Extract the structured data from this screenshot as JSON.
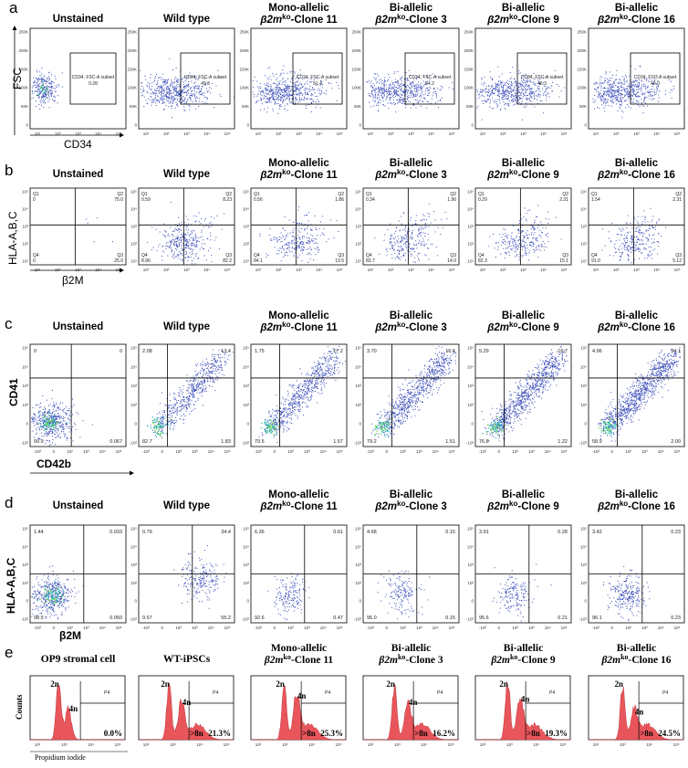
{
  "figure": {
    "colors": {
      "dot": "#3a4db8",
      "dense": "#1fb8b0",
      "core": "#6ccf3a",
      "hist": "#e8555a",
      "axis": "#000000"
    },
    "titles": [
      [
        "Unstained"
      ],
      [
        "Wild type"
      ],
      [
        "Mono-allelic",
        "β2m",
        "ko",
        "-Clone 11"
      ],
      [
        "Bi-allelic",
        "β2m",
        "ko",
        "-Clone 3"
      ],
      [
        "Bi-allelic",
        "β2m",
        "ko",
        "-Clone 9"
      ],
      [
        "Bi-allelic",
        "β2m",
        "ko",
        "-Clone 16"
      ]
    ],
    "panel_e_titles": [
      [
        "OP9 stromal cell"
      ],
      [
        "WT-iPSCs"
      ],
      [
        "Mono-allelic",
        "β2m",
        "ko",
        "-Clone 11"
      ],
      [
        "Bi-allelic",
        "β2m",
        "ko",
        "-Clone 3"
      ],
      [
        "Bi-allelic",
        "β2m",
        "ko",
        "-Clone 9"
      ],
      [
        "Bi-allelic",
        "β2m",
        "ko",
        "-Clone 16"
      ]
    ]
  },
  "chart_data": [
    {
      "panel": "a",
      "type": "scatter",
      "ylabel": "FSC",
      "xlabel": "CD34",
      "yticks": [
        "250K",
        "200K",
        "150K",
        "100K",
        "50K",
        "0"
      ],
      "xticks": [
        "10¹",
        "10²",
        "10³",
        "10⁴",
        "10⁵"
      ],
      "gate_name": "CD34, FSC-A subset",
      "gate_values": [
        "0.28",
        "49.6",
        "51.4",
        "54.2",
        "46.3",
        "49.0"
      ]
    },
    {
      "panel": "b",
      "type": "scatter",
      "ylabel": "HLA-A,B,C",
      "xlabel": "β2M",
      "yticks": [
        "10⁵",
        "10⁴",
        "10³",
        "10²",
        "10¹"
      ],
      "xticks": [
        "10¹",
        "10²",
        "10³",
        "10⁴",
        "10⁵"
      ],
      "quadrant_names": [
        "Q1",
        "Q2",
        "Q3",
        "Q4"
      ],
      "quadrants": [
        {
          "q1": "0",
          "q2": "75.0",
          "q3": "25.0",
          "q4": "0"
        },
        {
          "q1": "0.59",
          "q2": "8.23",
          "q3": "82.2",
          "q4": "8.96"
        },
        {
          "q1": "0.56",
          "q2": "1.86",
          "q3": "13.5",
          "q4": "84.1"
        },
        {
          "q1": "0.34",
          "q2": "1.96",
          "q3": "14.0",
          "q4": "83.7"
        },
        {
          "q1": "0.29",
          "q2": "2.31",
          "q3": "15.1",
          "q4": "82.3"
        },
        {
          "q1": "1.54",
          "q2": "2.31",
          "q3": "5.12",
          "q4": "91.0"
        }
      ]
    },
    {
      "panel": "c",
      "type": "scatter",
      "ylabel": "CD41",
      "xlabel": "CD42b",
      "yticks": [
        "10⁵",
        "10⁴",
        "10³",
        "10²",
        "0",
        "-10²"
      ],
      "xticks": [
        "-10²",
        "0",
        "10²",
        "10³",
        "10⁴",
        "10⁵"
      ],
      "quadrants": [
        {
          "ul": "0",
          "ur": "0",
          "ll": "99.9",
          "lr": "0.067"
        },
        {
          "ul": "2.08",
          "ur": "13.4",
          "ll": "82.7",
          "lr": "1.83"
        },
        {
          "ul": "1.75",
          "ur": "17.2",
          "ll": "79.5",
          "lr": "1.57"
        },
        {
          "ul": "3.70",
          "ur": "15.6",
          "ll": "79.2",
          "lr": "1.51"
        },
        {
          "ul": "5.29",
          "ur": "16.7",
          "ll": "76.8",
          "lr": "1.22"
        },
        {
          "ul": "4.96",
          "ur": "34.1",
          "ll": "58.9",
          "lr": "2.00"
        }
      ]
    },
    {
      "panel": "d",
      "type": "scatter",
      "ylabel": "HLA-A,B,C",
      "xlabel": "β2M",
      "yticks": [
        "10⁵",
        "10⁴",
        "10³",
        "10²",
        "0",
        "-10²"
      ],
      "xticks": [
        "-10²",
        "0",
        "10²",
        "10³",
        "10⁴",
        "10⁵"
      ],
      "quadrants": [
        {
          "ul": "1.44",
          "ur": "0.033",
          "ll": "98.5",
          "lr": "0.050"
        },
        {
          "ul": "0.79",
          "ur": "34.4",
          "ll": "9.57",
          "lr": "55.2"
        },
        {
          "ul": "6.36",
          "ur": "0.61",
          "ll": "92.6",
          "lr": "0.47"
        },
        {
          "ul": "4.68",
          "ur": "0.15",
          "ll": "95.0",
          "lr": "0.15"
        },
        {
          "ul": "3.91",
          "ur": "0.28",
          "ll": "95.6",
          "lr": "0.21"
        },
        {
          "ul": "3.42",
          "ur": "0.23",
          "ll": "96.1",
          "lr": "0.23"
        }
      ]
    },
    {
      "panel": "e",
      "type": "area",
      "ylabel": "Counts",
      "xlabel": "Propidium iodide",
      "xticks": [
        "10²",
        "10³",
        "10⁴",
        "10⁵"
      ],
      "gate_name": "P4",
      "peaks": [
        "2n",
        "4n",
        ">8n"
      ],
      "polyploid_percent": [
        "0.0%",
        "21.3%",
        "25.3%",
        "16.2%",
        "19.3%",
        "24.5%"
      ]
    }
  ]
}
